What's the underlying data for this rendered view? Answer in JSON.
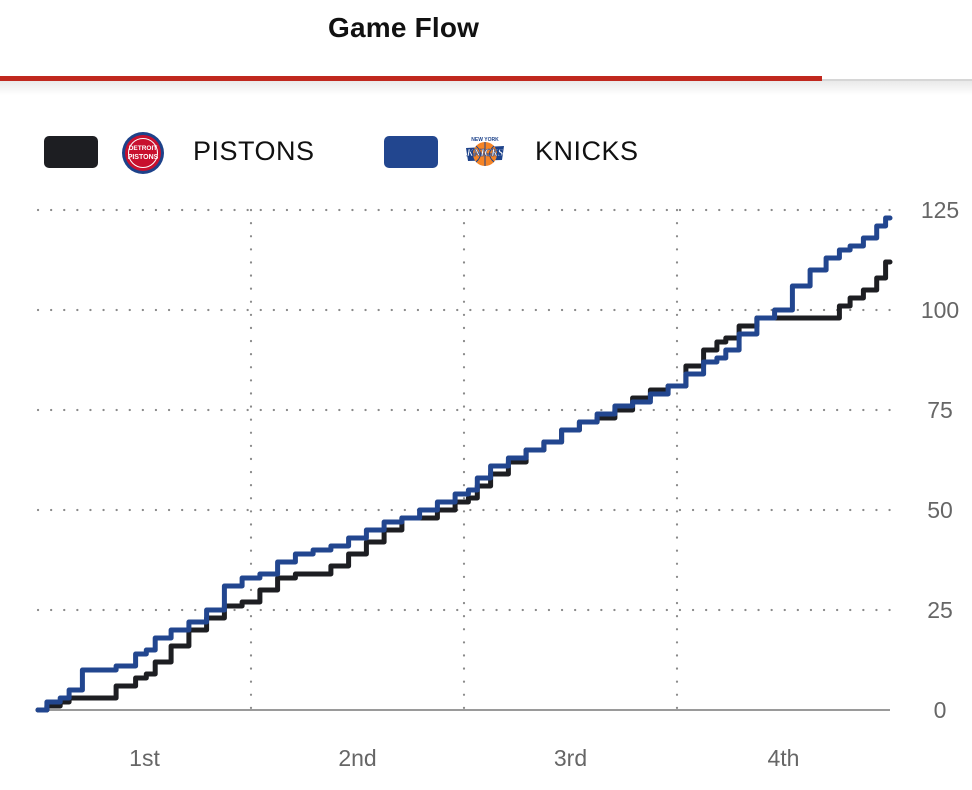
{
  "header": {
    "title": "Game Flow"
  },
  "legend": [
    {
      "name": "PISTONS",
      "color": "#1d1e22",
      "logo": "pistons-logo-icon",
      "logo_text_top": "DETROIT",
      "logo_text_bottom": "PISTONS"
    },
    {
      "name": "KNICKS",
      "color": "#22468f",
      "logo": "knicks-logo-icon",
      "logo_text_top": "NEW YORK",
      "logo_text_bottom": "KNICKS"
    }
  ],
  "chart_data": {
    "type": "line",
    "xlabel": "",
    "ylabel": "",
    "x_categories": [
      "1st",
      "2nd",
      "3rd",
      "4th"
    ],
    "xlim": [
      0,
      48
    ],
    "ylim": [
      0,
      125
    ],
    "y_ticks": [
      0,
      25,
      50,
      75,
      100,
      125
    ],
    "grid": true,
    "legend_position": "top-left",
    "series": [
      {
        "name": "PISTONS",
        "color": "#1d1e22",
        "x": [
          0,
          1,
          1.5,
          2,
          3,
          3.8,
          5,
          6,
          6.2,
          7,
          8,
          9,
          10,
          11,
          12,
          13,
          14,
          15,
          16,
          17,
          18,
          19,
          20,
          21,
          22,
          23,
          24,
          24.5,
          25,
          26,
          27,
          28,
          29,
          30,
          31,
          32,
          33,
          34,
          35,
          36,
          37,
          38,
          38.5,
          39,
          40,
          41,
          42,
          43,
          44,
          44.8,
          45.5,
          46,
          47,
          47.5,
          48
        ],
        "y": [
          0,
          1,
          2,
          3,
          3,
          3,
          6,
          8,
          9,
          12,
          16,
          20,
          23,
          26,
          27,
          30,
          33,
          34,
          34,
          36,
          39,
          42,
          45,
          48,
          48,
          50,
          52,
          53,
          56,
          59,
          62,
          65,
          67,
          70,
          72,
          73,
          75,
          78,
          80,
          81,
          86,
          90,
          92,
          93,
          96,
          98,
          98,
          98,
          98,
          98,
          101,
          103,
          105,
          108,
          112
        ]
      },
      {
        "name": "KNICKS",
        "color": "#22468f",
        "x": [
          0,
          1,
          1.5,
          2,
          3,
          3.8,
          5,
          6,
          6.2,
          7,
          8,
          9,
          10,
          11,
          12,
          13,
          14,
          15,
          16,
          17,
          18,
          19,
          20,
          21,
          22,
          23,
          24,
          24.5,
          25,
          26,
          27,
          28,
          29,
          30,
          31,
          32,
          33,
          34,
          35,
          36,
          37,
          38,
          38.5,
          39,
          40,
          41,
          42,
          43,
          44,
          44.8,
          45.5,
          46,
          47,
          47.5,
          48
        ],
        "y": [
          0,
          2,
          3,
          5,
          10,
          10,
          11,
          14,
          15,
          18,
          20,
          22,
          25,
          31,
          33,
          34,
          37,
          39,
          40,
          41,
          43,
          45,
          47,
          48,
          50,
          52,
          54,
          55,
          58,
          61,
          63,
          65,
          67,
          70,
          72,
          74,
          76,
          77,
          79,
          81,
          84,
          87,
          88,
          90,
          94,
          98,
          100,
          106,
          110,
          113,
          115,
          116,
          118,
          121,
          123
        ]
      }
    ]
  }
}
